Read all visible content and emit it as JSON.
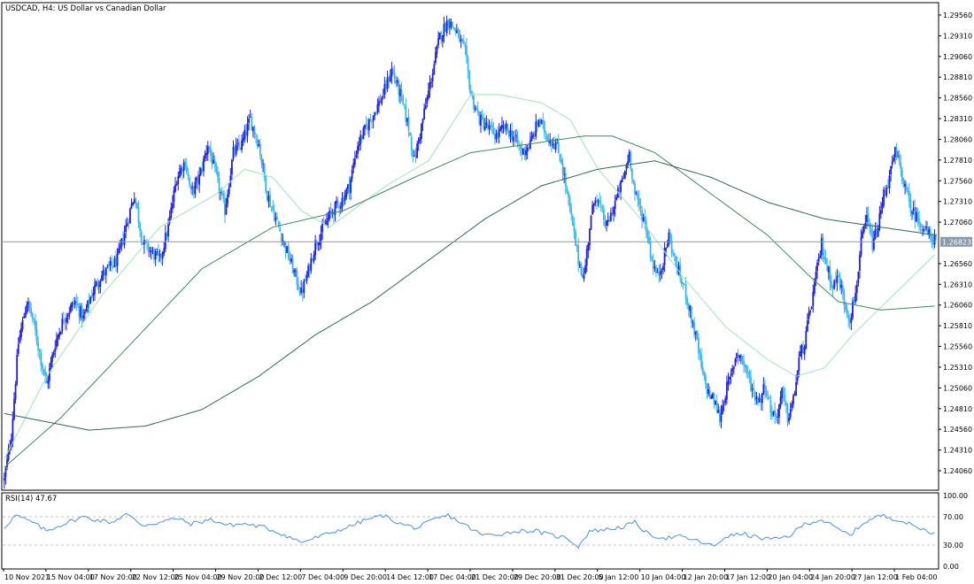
{
  "window": {
    "title": "USDCAD, H4:  US Dollar vs Canadian Dollar"
  },
  "price_pane": {
    "current_price_label": "1.26823",
    "current_price": 1.26823,
    "y_ticks": [
      "1.29560",
      "1.29310",
      "1.29060",
      "1.28810",
      "1.28560",
      "1.28310",
      "1.28060",
      "1.27810",
      "1.27560",
      "1.27310",
      "1.27060",
      "1.26560",
      "1.26310",
      "1.26060",
      "1.25810",
      "1.25560",
      "1.25310",
      "1.25060",
      "1.24810",
      "1.24560",
      "1.24310",
      "1.24060"
    ],
    "y_tick_values": [
      1.2956,
      1.2931,
      1.2906,
      1.2881,
      1.2856,
      1.2831,
      1.2806,
      1.2781,
      1.2756,
      1.2731,
      1.2706,
      1.2656,
      1.2631,
      1.2606,
      1.2581,
      1.2556,
      1.2531,
      1.2506,
      1.2481,
      1.2456,
      1.2431,
      1.2406
    ],
    "colors": {
      "bull": "#1f1fdc",
      "bear": "#39b6ec",
      "ma_fast": "#9fe3b8",
      "ma_mid": "#3e8a5c",
      "ma_slow": "#2e6b47",
      "price_line": "#8a9aa8"
    }
  },
  "rsi_pane": {
    "label": "RSI(14) 47.67",
    "y_ticks": [
      "100.00",
      "70.00",
      "30.00",
      "0.00"
    ],
    "y_tick_values": [
      100,
      70,
      30,
      0
    ],
    "color": "#4a90e2"
  },
  "x_axis": {
    "labels": [
      "10 Nov 2021",
      "15 Nov 04:00",
      "17 Nov 20:00",
      "22 Nov 12:00",
      "25 Nov 04:00",
      "29 Nov 20:00",
      "2 Dec 12:00",
      "7 Dec 04:00",
      "9 Dec 20:00",
      "14 Dec 12:00",
      "17 Dec 04:00",
      "21 Dec 20:00",
      "29 Dec 20:00",
      "31 Dec 20:00",
      "5 Jan 12:00",
      "10 Jan 04:00",
      "12 Jan 20:00",
      "17 Jan 12:00",
      "20 Jan 04:00",
      "24 Jan 20:00",
      "27 Jan 12:00",
      "1 Feb 04:00"
    ]
  },
  "chart_data": {
    "type": "candlestick",
    "symbol": "USDCAD",
    "timeframe": "H4",
    "anchors": [
      [
        0,
        1.2395
      ],
      [
        5,
        1.245
      ],
      [
        10,
        1.256
      ],
      [
        16,
        1.261
      ],
      [
        20,
        1.259
      ],
      [
        26,
        1.254
      ],
      [
        30,
        1.251
      ],
      [
        36,
        1.256
      ],
      [
        42,
        1.259
      ],
      [
        50,
        1.261
      ],
      [
        56,
        1.259
      ],
      [
        62,
        1.262
      ],
      [
        68,
        1.264
      ],
      [
        74,
        1.265
      ],
      [
        80,
        1.266
      ],
      [
        86,
        1.27
      ],
      [
        92,
        1.274
      ],
      [
        98,
        1.268
      ],
      [
        104,
        1.267
      ],
      [
        110,
        1.266
      ],
      [
        116,
        1.27
      ],
      [
        122,
        1.276
      ],
      [
        128,
        1.278
      ],
      [
        132,
        1.274
      ],
      [
        138,
        1.276
      ],
      [
        144,
        1.28
      ],
      [
        150,
        1.276
      ],
      [
        156,
        1.272
      ],
      [
        162,
        1.279
      ],
      [
        168,
        1.28
      ],
      [
        174,
        1.283
      ],
      [
        180,
        1.28
      ],
      [
        186,
        1.274
      ],
      [
        192,
        1.271
      ],
      [
        198,
        1.268
      ],
      [
        204,
        1.265
      ],
      [
        210,
        1.262
      ],
      [
        214,
        1.264
      ],
      [
        220,
        1.268
      ],
      [
        226,
        1.27
      ],
      [
        232,
        1.272
      ],
      [
        238,
        1.273
      ],
      [
        244,
        1.275
      ],
      [
        250,
        1.28
      ],
      [
        256,
        1.282
      ],
      [
        262,
        1.284
      ],
      [
        268,
        1.286
      ],
      [
        274,
        1.289
      ],
      [
        280,
        1.286
      ],
      [
        286,
        1.282
      ],
      [
        290,
        1.278
      ],
      [
        296,
        1.283
      ],
      [
        302,
        1.288
      ],
      [
        308,
        1.293
      ],
      [
        314,
        1.295
      ],
      [
        320,
        1.2935
      ],
      [
        326,
        1.291
      ],
      [
        330,
        1.286
      ],
      [
        336,
        1.283
      ],
      [
        342,
        1.282
      ],
      [
        348,
        1.281
      ],
      [
        354,
        1.282
      ],
      [
        360,
        1.281
      ],
      [
        366,
        1.279
      ],
      [
        372,
        1.28
      ],
      [
        378,
        1.283
      ],
      [
        384,
        1.281
      ],
      [
        390,
        1.28
      ],
      [
        394,
        1.278
      ],
      [
        398,
        1.274
      ],
      [
        402,
        1.27
      ],
      [
        406,
        1.266
      ],
      [
        410,
        1.264
      ],
      [
        414,
        1.27
      ],
      [
        418,
        1.274
      ],
      [
        422,
        1.272
      ],
      [
        426,
        1.27
      ],
      [
        430,
        1.272
      ],
      [
        434,
        1.274
      ],
      [
        438,
        1.276
      ],
      [
        442,
        1.279
      ],
      [
        446,
        1.274
      ],
      [
        450,
        1.272
      ],
      [
        454,
        1.27
      ],
      [
        458,
        1.266
      ],
      [
        462,
        1.264
      ],
      [
        466,
        1.266
      ],
      [
        470,
        1.269
      ],
      [
        474,
        1.266
      ],
      [
        478,
        1.264
      ],
      [
        482,
        1.262
      ],
      [
        486,
        1.259
      ],
      [
        490,
        1.256
      ],
      [
        494,
        1.252
      ],
      [
        498,
        1.25
      ],
      [
        502,
        1.249
      ],
      [
        506,
        1.247
      ],
      [
        510,
        1.25
      ],
      [
        514,
        1.252
      ],
      [
        518,
        1.255
      ],
      [
        522,
        1.254
      ],
      [
        526,
        1.252
      ],
      [
        530,
        1.25
      ],
      [
        534,
        1.249
      ],
      [
        538,
        1.251
      ],
      [
        542,
        1.248
      ],
      [
        546,
        1.247
      ],
      [
        550,
        1.25
      ],
      [
        554,
        1.247
      ],
      [
        558,
        1.249
      ],
      [
        562,
        1.254
      ],
      [
        566,
        1.256
      ],
      [
        570,
        1.26
      ],
      [
        574,
        1.264
      ],
      [
        578,
        1.268
      ],
      [
        582,
        1.265
      ],
      [
        586,
        1.263
      ],
      [
        590,
        1.264
      ],
      [
        594,
        1.261
      ],
      [
        598,
        1.259
      ],
      [
        602,
        1.262
      ],
      [
        606,
        1.268
      ],
      [
        610,
        1.271
      ],
      [
        614,
        1.268
      ],
      [
        618,
        1.27
      ],
      [
        622,
        1.274
      ],
      [
        626,
        1.276
      ],
      [
        630,
        1.279
      ],
      [
        634,
        1.277
      ],
      [
        638,
        1.274
      ],
      [
        642,
        1.272
      ],
      [
        646,
        1.271
      ],
      [
        650,
        1.27
      ],
      [
        654,
        1.269
      ],
      [
        658,
        1.2685
      ]
    ],
    "ma_fast_anchors": [
      [
        0,
        1.242
      ],
      [
        30,
        1.252
      ],
      [
        70,
        1.262
      ],
      [
        110,
        1.27
      ],
      [
        150,
        1.274
      ],
      [
        170,
        1.277
      ],
      [
        190,
        1.276
      ],
      [
        210,
        1.272
      ],
      [
        230,
        1.27
      ],
      [
        270,
        1.275
      ],
      [
        300,
        1.278
      ],
      [
        330,
        1.286
      ],
      [
        350,
        1.286
      ],
      [
        380,
        1.285
      ],
      [
        400,
        1.283
      ],
      [
        420,
        1.277
      ],
      [
        450,
        1.271
      ],
      [
        480,
        1.264
      ],
      [
        510,
        1.258
      ],
      [
        540,
        1.254
      ],
      [
        560,
        1.252
      ],
      [
        580,
        1.253
      ],
      [
        600,
        1.257
      ],
      [
        630,
        1.262
      ],
      [
        660,
        1.267
      ]
    ],
    "ma_mid_anchors": [
      [
        0,
        1.241
      ],
      [
        40,
        1.247
      ],
      [
        90,
        1.256
      ],
      [
        140,
        1.265
      ],
      [
        190,
        1.27
      ],
      [
        240,
        1.272
      ],
      [
        290,
        1.276
      ],
      [
        330,
        1.279
      ],
      [
        370,
        1.28
      ],
      [
        410,
        1.281
      ],
      [
        430,
        1.281
      ],
      [
        460,
        1.279
      ],
      [
        500,
        1.274
      ],
      [
        540,
        1.269
      ],
      [
        570,
        1.264
      ],
      [
        590,
        1.261
      ],
      [
        620,
        1.26
      ],
      [
        660,
        1.2605
      ]
    ],
    "ma_slow_anchors": [
      [
        0,
        1.2475
      ],
      [
        30,
        1.2465
      ],
      [
        60,
        1.2455
      ],
      [
        100,
        1.246
      ],
      [
        140,
        1.248
      ],
      [
        180,
        1.252
      ],
      [
        220,
        1.257
      ],
      [
        260,
        1.261
      ],
      [
        300,
        1.266
      ],
      [
        340,
        1.271
      ],
      [
        380,
        1.275
      ],
      [
        420,
        1.277
      ],
      [
        460,
        1.278
      ],
      [
        500,
        1.276
      ],
      [
        540,
        1.273
      ],
      [
        580,
        1.271
      ],
      [
        620,
        1.27
      ],
      [
        660,
        1.269
      ]
    ],
    "rsi_anchors": [
      [
        0,
        55
      ],
      [
        8,
        72
      ],
      [
        20,
        62
      ],
      [
        30,
        50
      ],
      [
        42,
        60
      ],
      [
        56,
        70
      ],
      [
        64,
        66
      ],
      [
        76,
        62
      ],
      [
        86,
        74
      ],
      [
        98,
        58
      ],
      [
        110,
        62
      ],
      [
        122,
        68
      ],
      [
        132,
        60
      ],
      [
        146,
        66
      ],
      [
        158,
        58
      ],
      [
        170,
        60
      ],
      [
        184,
        55
      ],
      [
        196,
        46
      ],
      [
        210,
        34
      ],
      [
        220,
        40
      ],
      [
        232,
        48
      ],
      [
        244,
        56
      ],
      [
        256,
        66
      ],
      [
        268,
        72
      ],
      [
        280,
        60
      ],
      [
        292,
        54
      ],
      [
        304,
        66
      ],
      [
        314,
        72
      ],
      [
        326,
        58
      ],
      [
        338,
        44
      ],
      [
        352,
        46
      ],
      [
        364,
        50
      ],
      [
        376,
        50
      ],
      [
        386,
        44
      ],
      [
        398,
        40
      ],
      [
        406,
        28
      ],
      [
        414,
        50
      ],
      [
        426,
        52
      ],
      [
        438,
        56
      ],
      [
        446,
        62
      ],
      [
        456,
        44
      ],
      [
        468,
        40
      ],
      [
        478,
        42
      ],
      [
        490,
        36
      ],
      [
        502,
        28
      ],
      [
        510,
        42
      ],
      [
        522,
        46
      ],
      [
        534,
        40
      ],
      [
        546,
        38
      ],
      [
        556,
        44
      ],
      [
        566,
        60
      ],
      [
        578,
        66
      ],
      [
        588,
        54
      ],
      [
        598,
        44
      ],
      [
        608,
        62
      ],
      [
        620,
        72
      ],
      [
        632,
        66
      ],
      [
        642,
        58
      ],
      [
        650,
        52
      ],
      [
        658,
        47
      ]
    ],
    "rsi_last": 47.67,
    "num_bars": 660
  }
}
